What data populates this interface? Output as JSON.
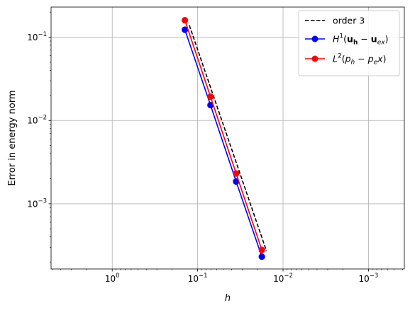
{
  "chart_data": {
    "type": "line",
    "xscale": "log",
    "yscale": "log",
    "x_inverted": true,
    "xlabel": "h",
    "ylabel": "Error in energy norm",
    "xlim": [
      5.2,
      0.00038
    ],
    "ylim": [
      0.000165,
      0.23
    ],
    "grid": true,
    "legend_position": "top-right",
    "x_ticks": [
      {
        "value": 1,
        "label": "10",
        "exp": "0"
      },
      {
        "value": 0.1,
        "label": "10",
        "exp": "−1"
      },
      {
        "value": 0.01,
        "label": "10",
        "exp": "−2"
      },
      {
        "value": 0.001,
        "label": "10",
        "exp": "−3"
      }
    ],
    "y_ticks": [
      {
        "value": 0.1,
        "label": "10",
        "exp": "−1"
      },
      {
        "value": 0.01,
        "label": "10",
        "exp": "−2"
      },
      {
        "value": 0.001,
        "label": "10",
        "exp": "−3"
      }
    ],
    "series": [
      {
        "name": "order 3",
        "color": "#000000",
        "dash": true,
        "marker": false,
        "x": [
          0.125,
          0.0625,
          0.03125,
          0.015625
        ],
        "y": [
          0.139,
          0.0173,
          0.00217,
          0.000271
        ]
      },
      {
        "name": "H1(uh − uex)",
        "color": "#0000ff",
        "dash": false,
        "marker": true,
        "x": [
          0.141,
          0.0707,
          0.0354,
          0.0177
        ],
        "y": [
          0.123,
          0.0153,
          0.00185,
          0.000232
        ]
      },
      {
        "name": "L2(ph − pe x)",
        "color": "#ff0000",
        "dash": false,
        "marker": true,
        "x": [
          0.141,
          0.0707,
          0.0354,
          0.0177
        ],
        "y": [
          0.16,
          0.0193,
          0.00231,
          0.000279
        ]
      }
    ]
  }
}
